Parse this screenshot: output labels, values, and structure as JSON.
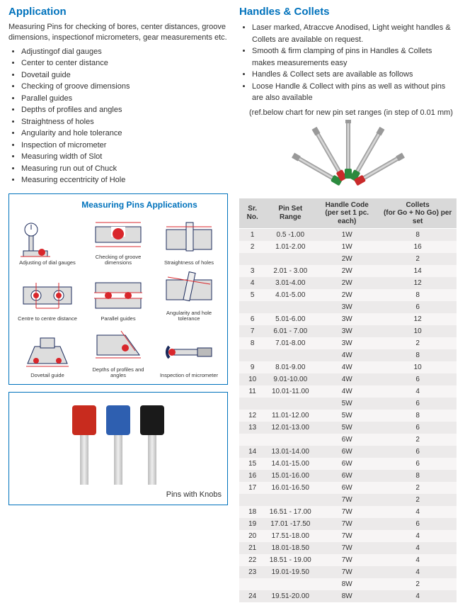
{
  "left": {
    "heading": "Application",
    "intro": "Measuring Pins for checking of bores, center distances, groove dimensions, inspectionof micrometers, gear measurements etc.",
    "bullets": [
      "Adjustingof dial gauges",
      "Center to center distance",
      "Dovetail guide",
      "Checking of groove dimensions",
      "Parallel guides",
      "Depths of profiles and angles",
      "Straightness of holes",
      "Angularity and hole tolerance",
      "Inspection of micrometer",
      "Measuring width of Slot",
      "Measuring run out of Chuck",
      "Measuring eccentricity of Hole"
    ],
    "diagram": {
      "title": "Measuring Pins Applications",
      "captions": [
        "Adjusting of dial gauges",
        "Checking of groove dimensions",
        "Straightness of holes",
        "Centre to centre distance",
        "Parallel guides",
        "Angularity and hole tolerance",
        "Dovetail guide",
        "Depths of profiles and angles",
        "Inspection of micrometer"
      ]
    },
    "photo_caption": "Pins with Knobs",
    "knob_colors": [
      "#c82b1e",
      "#2e5fb0",
      "#1a1a1a"
    ]
  },
  "right": {
    "heading": "Handles & Collets",
    "bullets": [
      "Laser marked, Atraccve Anodised, Light weight handles & Collets are available on request.",
      "Smooth & firm clamping of pins in Handles & Collets makes measurements easy",
      "Handles & Collect sets are available as follows",
      "Loose Handle & Collect with pins as well as without pins are also available"
    ],
    "ref_note": "(ref.below chart for new pin set ranges (in step of 0.01 mm)",
    "table": {
      "headers": [
        "Sr. No.",
        "Pin Set Range",
        "Handle Code (per set 1 pc. each)",
        "Collets (for Go + No Go) per set"
      ],
      "rows": [
        [
          "1",
          "0.5 -1.00",
          "1W",
          "8"
        ],
        [
          "2",
          "1.01-2.00",
          "1W",
          "16"
        ],
        [
          "",
          "",
          "2W",
          "2"
        ],
        [
          "3",
          "2.01 - 3.00",
          "2W",
          "14"
        ],
        [
          "4",
          "3.01-4.00",
          "2W",
          "12"
        ],
        [
          "5",
          "4.01-5.00",
          "2W",
          "8"
        ],
        [
          "",
          "",
          "3W",
          "6"
        ],
        [
          "6",
          "5.01-6.00",
          "3W",
          "12"
        ],
        [
          "7",
          "6.01 - 7.00",
          "3W",
          "10"
        ],
        [
          "8",
          "7.01-8.00",
          "3W",
          "2"
        ],
        [
          "",
          "",
          "4W",
          "8"
        ],
        [
          "9",
          "8.01-9.00",
          "4W",
          "10"
        ],
        [
          "10",
          "9.01-10.00",
          "4W",
          "6"
        ],
        [
          "11",
          "10.01-11.00",
          "4W",
          "4"
        ],
        [
          "",
          "",
          "5W",
          "6"
        ],
        [
          "12",
          "11.01-12.00",
          "5W",
          "8"
        ],
        [
          "13",
          "12.01-13.00",
          "5W",
          "6"
        ],
        [
          "",
          "",
          "6W",
          "2"
        ],
        [
          "14",
          "13.01-14.00",
          "6W",
          "6"
        ],
        [
          "15",
          "14.01-15.00",
          "6W",
          "6"
        ],
        [
          "16",
          "15.01-16.00",
          "6W",
          "8"
        ],
        [
          "17",
          "16.01-16.50",
          "6W",
          "2"
        ],
        [
          "",
          "",
          "7W",
          "2"
        ],
        [
          "18",
          "16.51 - 17.00",
          "7W",
          "4"
        ],
        [
          "19",
          "17.01 -17.50",
          "7W",
          "6"
        ],
        [
          "20",
          "17.51-18.00",
          "7W",
          "4"
        ],
        [
          "21",
          "18.01-18.50",
          "7W",
          "4"
        ],
        [
          "22",
          "18.51 - 19.00",
          "7W",
          "4"
        ],
        [
          "23",
          "19.01-19.50",
          "7W",
          "4"
        ],
        [
          "",
          "",
          "8W",
          "2"
        ],
        [
          "24",
          "19.51-20.00",
          "8W",
          "4"
        ]
      ]
    }
  },
  "colors": {
    "heading": "#0072bc",
    "table_header_bg": "#d9d9d9",
    "row_odd_bg": "#eceaea",
    "row_even_bg": "#f7f5f5",
    "diagram_red": "#d9262b",
    "diagram_navy": "#1b2a5b"
  }
}
